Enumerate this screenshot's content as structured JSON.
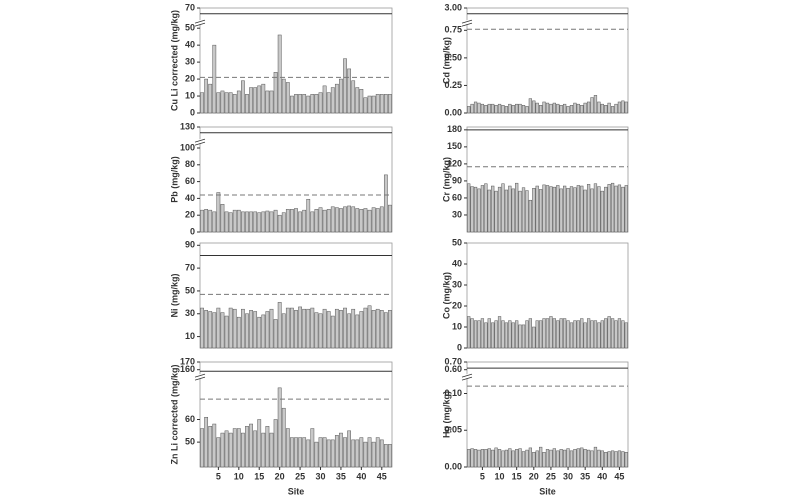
{
  "chart_data": [
    {
      "type": "bar",
      "ylabel": "Cu Li corrected (mg/kg)",
      "color": "#c8c8c8",
      "xlim": [
        0.5,
        47.5
      ],
      "x": [
        1,
        2,
        3,
        4,
        5,
        6,
        7,
        8,
        9,
        10,
        11,
        12,
        13,
        14,
        15,
        16,
        17,
        18,
        19,
        20,
        21,
        22,
        23,
        24,
        25,
        26,
        27,
        28,
        29,
        30,
        31,
        32,
        33,
        34,
        35,
        36,
        37,
        38,
        39,
        40,
        41,
        42,
        43,
        44,
        45,
        46,
        47
      ],
      "values": [
        12,
        20,
        17,
        40,
        12,
        13,
        12,
        12,
        11,
        13,
        19,
        11,
        15,
        15,
        16,
        17,
        13,
        13,
        24,
        46,
        20,
        18,
        10,
        11,
        11,
        11,
        10,
        11,
        11,
        12,
        16,
        12,
        15,
        17,
        20,
        32,
        26,
        19,
        15,
        14,
        9,
        10,
        10,
        11,
        11,
        11,
        11
      ],
      "ysegments": [
        {
          "ylim": [
            0,
            52
          ],
          "yticks": [
            0,
            10,
            20,
            30,
            40,
            50
          ]
        },
        {
          "ylim": [
            60,
            70
          ],
          "yticks": [
            70
          ]
        }
      ],
      "hlines": [
        {
          "value": 65,
          "style": "solid"
        },
        {
          "value": 21,
          "style": "dashed"
        }
      ]
    },
    {
      "type": "bar",
      "ylabel": "Cd (mg/kg)",
      "color": "#c8c8c8",
      "xlim": [
        0.5,
        47.5
      ],
      "x": [
        1,
        2,
        3,
        4,
        5,
        6,
        7,
        8,
        9,
        10,
        11,
        12,
        13,
        14,
        15,
        16,
        17,
        18,
        19,
        20,
        21,
        22,
        23,
        24,
        25,
        26,
        27,
        28,
        29,
        30,
        31,
        32,
        33,
        34,
        35,
        36,
        37,
        38,
        39,
        40,
        41,
        42,
        43,
        44,
        45,
        46,
        47
      ],
      "values": [
        0.06,
        0.08,
        0.1,
        0.09,
        0.08,
        0.07,
        0.08,
        0.08,
        0.07,
        0.08,
        0.07,
        0.06,
        0.08,
        0.07,
        0.08,
        0.08,
        0.07,
        0.06,
        0.13,
        0.11,
        0.09,
        0.07,
        0.1,
        0.09,
        0.08,
        0.09,
        0.08,
        0.07,
        0.08,
        0.06,
        0.07,
        0.09,
        0.08,
        0.07,
        0.09,
        0.1,
        0.14,
        0.16,
        0.1,
        0.08,
        0.07,
        0.09,
        0.06,
        0.08,
        0.1,
        0.11,
        0.1
      ],
      "ysegments": [
        {
          "ylim": [
            0,
            0.8
          ],
          "yticks": [
            {
              "value": 0,
              "label": "0.00"
            },
            0.25,
            {
              "value": 0.5,
              "label": "0.50"
            },
            0.75
          ]
        },
        {
          "ylim": [
            2.8,
            3.0
          ],
          "yticks": [
            {
              "value": 3,
              "label": "3.00"
            }
          ]
        }
      ],
      "hlines": [
        {
          "value": 2.9,
          "style": "solid"
        },
        {
          "value": 0.76,
          "style": "dashed"
        }
      ]
    },
    {
      "type": "bar",
      "ylabel": "Pb (mg/kg)",
      "color": "#c8c8c8",
      "xlim": [
        0.5,
        47.5
      ],
      "x": [
        1,
        2,
        3,
        4,
        5,
        6,
        7,
        8,
        9,
        10,
        11,
        12,
        13,
        14,
        15,
        16,
        17,
        18,
        19,
        20,
        21,
        22,
        23,
        24,
        25,
        26,
        27,
        28,
        29,
        30,
        31,
        32,
        33,
        34,
        35,
        36,
        37,
        38,
        39,
        40,
        41,
        42,
        43,
        44,
        45,
        46,
        47
      ],
      "values": [
        26,
        27,
        26,
        24,
        47,
        33,
        24,
        23,
        26,
        26,
        24,
        24,
        24,
        24,
        23,
        24,
        25,
        24,
        26,
        20,
        23,
        27,
        27,
        28,
        24,
        26,
        39,
        24,
        27,
        29,
        26,
        27,
        30,
        29,
        28,
        30,
        31,
        30,
        28,
        27,
        28,
        26,
        29,
        28,
        30,
        68,
        32
      ],
      "ysegments": [
        {
          "ylim": [
            0,
            105
          ],
          "yticks": [
            0,
            20,
            40,
            60,
            80,
            100
          ]
        },
        {
          "ylim": [
            120,
            130
          ],
          "yticks": [
            130
          ]
        }
      ],
      "hlines": [
        {
          "value": 125,
          "style": "solid"
        },
        {
          "value": 44,
          "style": "dashed"
        }
      ]
    },
    {
      "type": "bar",
      "ylabel": "Cr (mg/kg)",
      "color": "#c8c8c8",
      "xlim": [
        0.5,
        47.5
      ],
      "x": [
        1,
        2,
        3,
        4,
        5,
        6,
        7,
        8,
        9,
        10,
        11,
        12,
        13,
        14,
        15,
        16,
        17,
        18,
        19,
        20,
        21,
        22,
        23,
        24,
        25,
        26,
        27,
        28,
        29,
        30,
        31,
        32,
        33,
        34,
        35,
        36,
        37,
        38,
        39,
        40,
        41,
        42,
        43,
        44,
        45,
        46,
        47
      ],
      "values": [
        85,
        80,
        79,
        76,
        82,
        85,
        74,
        81,
        72,
        79,
        85,
        74,
        81,
        76,
        86,
        72,
        78,
        73,
        56,
        77,
        81,
        75,
        83,
        82,
        80,
        79,
        82,
        76,
        81,
        77,
        80,
        78,
        82,
        81,
        74,
        84,
        76,
        85,
        80,
        72,
        79,
        84,
        86,
        81,
        83,
        79,
        82
      ],
      "ysegments": [
        {
          "ylim": [
            0,
            185
          ],
          "yticks": [
            30,
            60,
            90,
            120,
            150,
            180
          ]
        }
      ],
      "hlines": [
        {
          "value": 180,
          "style": "solid"
        },
        {
          "value": 115,
          "style": "dashed"
        }
      ]
    },
    {
      "type": "bar",
      "ylabel": "Ni (mg/kg)",
      "color": "#c8c8c8",
      "xlim": [
        0.5,
        47.5
      ],
      "x": [
        1,
        2,
        3,
        4,
        5,
        6,
        7,
        8,
        9,
        10,
        11,
        12,
        13,
        14,
        15,
        16,
        17,
        18,
        19,
        20,
        21,
        22,
        23,
        24,
        25,
        26,
        27,
        28,
        29,
        30,
        31,
        32,
        33,
        34,
        35,
        36,
        37,
        38,
        39,
        40,
        41,
        42,
        43,
        44,
        45,
        46,
        47
      ],
      "values": [
        35,
        33,
        32,
        31,
        35,
        31,
        28,
        35,
        34,
        27,
        34,
        30,
        33,
        32,
        27,
        29,
        32,
        34,
        25,
        40,
        30,
        35,
        35,
        33,
        36,
        34,
        34,
        35,
        31,
        30,
        34,
        32,
        28,
        34,
        33,
        35,
        30,
        34,
        29,
        32,
        35,
        37,
        33,
        34,
        33,
        31,
        33
      ],
      "ysegments": [
        {
          "ylim": [
            0,
            92
          ],
          "yticks": [
            10,
            30,
            50,
            70,
            90
          ]
        }
      ],
      "hlines": [
        {
          "value": 81,
          "style": "solid"
        },
        {
          "value": 47,
          "style": "dashed"
        }
      ]
    },
    {
      "type": "bar",
      "ylabel": "Co (mg/kg)",
      "color": "#c8c8c8",
      "xlim": [
        0.5,
        47.5
      ],
      "x": [
        1,
        2,
        3,
        4,
        5,
        6,
        7,
        8,
        9,
        10,
        11,
        12,
        13,
        14,
        15,
        16,
        17,
        18,
        19,
        20,
        21,
        22,
        23,
        24,
        25,
        26,
        27,
        28,
        29,
        30,
        31,
        32,
        33,
        34,
        35,
        36,
        37,
        38,
        39,
        40,
        41,
        42,
        43,
        44,
        45,
        46,
        47
      ],
      "values": [
        15,
        14,
        13,
        13,
        14,
        12,
        14,
        12,
        13,
        15,
        13,
        12,
        13,
        12,
        13,
        11,
        11,
        13,
        14,
        10,
        13,
        13,
        14,
        14,
        15,
        14,
        13,
        14,
        14,
        13,
        12,
        13,
        13,
        14,
        12,
        14,
        13,
        13,
        12,
        13,
        14,
        15,
        14,
        13,
        14,
        13,
        12
      ],
      "ysegments": [
        {
          "ylim": [
            0,
            50
          ],
          "yticks": [
            0,
            10,
            20,
            30,
            40,
            50
          ]
        }
      ],
      "hlines": []
    },
    {
      "type": "bar",
      "ylabel": "Zn Li corrected (mg/kg)",
      "xlabel": "Site",
      "color": "#c8c8c8",
      "xlim": [
        0.5,
        47.5
      ],
      "xticks": [
        5,
        10,
        15,
        20,
        25,
        30,
        35,
        40,
        45
      ],
      "x": [
        1,
        2,
        3,
        4,
        5,
        6,
        7,
        8,
        9,
        10,
        11,
        12,
        13,
        14,
        15,
        16,
        17,
        18,
        19,
        20,
        21,
        22,
        23,
        24,
        25,
        26,
        27,
        28,
        29,
        30,
        31,
        32,
        33,
        34,
        35,
        36,
        37,
        38,
        39,
        40,
        41,
        42,
        43,
        44,
        45,
        46,
        47
      ],
      "values": [
        56,
        61,
        57,
        58,
        52,
        54,
        55,
        54,
        56,
        56,
        54,
        57,
        58,
        55,
        60,
        54,
        57,
        54,
        60,
        74,
        65,
        56,
        52,
        52,
        52,
        52,
        51,
        56,
        50,
        52,
        52,
        51,
        51,
        53,
        54,
        52,
        55,
        51,
        51,
        52,
        50,
        52,
        50,
        52,
        51,
        49,
        49
      ],
      "ysegments": [
        {
          "ylim": [
            39,
            78
          ],
          "yticks": [
            50,
            60
          ]
        },
        {
          "ylim": [
            155,
            170
          ],
          "yticks": [
            160,
            170
          ]
        }
      ],
      "hlines": [
        {
          "value": 158,
          "style": "solid"
        },
        {
          "value": 69,
          "style": "dashed"
        }
      ]
    },
    {
      "type": "bar",
      "ylabel": "Hg (mg/kg)",
      "xlabel": "Site",
      "color": "#c8c8c8",
      "xlim": [
        0.5,
        47.5
      ],
      "xticks": [
        5,
        10,
        15,
        20,
        25,
        30,
        35,
        40,
        45
      ],
      "x": [
        1,
        2,
        3,
        4,
        5,
        6,
        7,
        8,
        9,
        10,
        11,
        12,
        13,
        14,
        15,
        16,
        17,
        18,
        19,
        20,
        21,
        22,
        23,
        24,
        25,
        26,
        27,
        28,
        29,
        30,
        31,
        32,
        33,
        34,
        35,
        36,
        37,
        38,
        39,
        40,
        41,
        42,
        43,
        44,
        45,
        46,
        47
      ],
      "values": [
        0.024,
        0.025,
        0.024,
        0.023,
        0.024,
        0.024,
        0.025,
        0.023,
        0.026,
        0.024,
        0.022,
        0.023,
        0.025,
        0.022,
        0.024,
        0.025,
        0.021,
        0.023,
        0.026,
        0.02,
        0.022,
        0.027,
        0.02,
        0.024,
        0.023,
        0.025,
        0.022,
        0.024,
        0.023,
        0.025,
        0.022,
        0.024,
        0.025,
        0.026,
        0.024,
        0.023,
        0.022,
        0.027,
        0.023,
        0.022,
        0.02,
        0.021,
        0.022,
        0.021,
        0.022,
        0.021,
        0.02
      ],
      "ysegments": [
        {
          "ylim": [
            0,
            0.12
          ],
          "yticks": [
            {
              "value": 0,
              "label": "0.00"
            },
            0.05,
            {
              "value": 0.1,
              "label": "0.10"
            }
          ]
        },
        {
          "ylim": [
            0.55,
            0.7
          ],
          "yticks": [
            {
              "value": 0.6,
              "label": "0.60"
            },
            {
              "value": 0.7,
              "label": "0.70"
            }
          ]
        }
      ],
      "hlines": [
        {
          "value": 0.62,
          "style": "solid"
        },
        {
          "value": 0.11,
          "style": "dashed"
        }
      ]
    }
  ]
}
